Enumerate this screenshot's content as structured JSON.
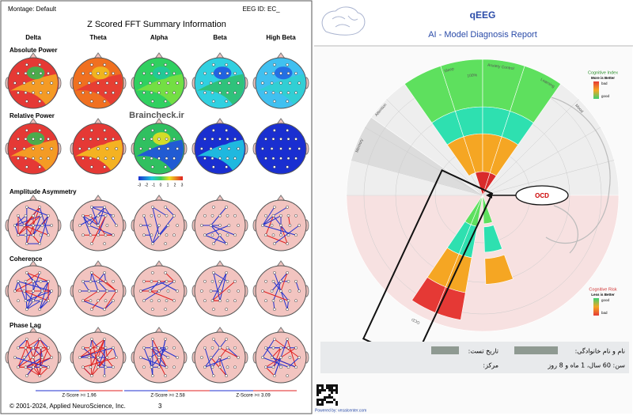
{
  "left_page": {
    "header": {
      "montage": "Montage: Default",
      "eeg_id": "EEG ID: EC_",
      "title": "Z Scored FFT Summary Information"
    },
    "columns": [
      "Delta",
      "Theta",
      "Alpha",
      "Beta",
      "High Beta"
    ],
    "rows": [
      "Absolute Power",
      "Relative Power",
      "Amplitude Asymmetry",
      "Coherence",
      "Phase Lag"
    ],
    "watermark": "Braincheck.ir",
    "colorbar_ticks": [
      -3,
      -2,
      -1,
      0,
      1,
      2,
      3
    ],
    "thresholds": [
      "Z-Score >= 1.96",
      "Z-Score >= 2.58",
      "Z-Score >= 3.09"
    ],
    "footer": {
      "copyright": "© 2001-2024, Applied NeuroScience, Inc.",
      "page": "3"
    }
  },
  "right_page": {
    "header": {
      "title": "qEEG",
      "subtitle": "AI - Model Diagnosis Report"
    },
    "callout": "OCD",
    "wheel_labels": [
      "Memory",
      "Attention",
      "Sleep",
      "Anxiety Control",
      "Learning",
      "Mood",
      "100%",
      "OCD"
    ],
    "index_legend": {
      "title": "Cognitive Index",
      "note": "More is Better",
      "top": "bad",
      "bottom": "good"
    },
    "risk_legend": {
      "title": "Cognitive Risk",
      "note": "Less is Better",
      "top": "good",
      "bottom": "bad"
    },
    "info": {
      "name": "نام و نام خانوادگی:",
      "date": "تاریخ تست:",
      "age": "سن: 60 سال، 1 ماه و 8 روز",
      "center": "مرکز:"
    },
    "powered_by": "Powered by: vesalcenter.com"
  }
}
